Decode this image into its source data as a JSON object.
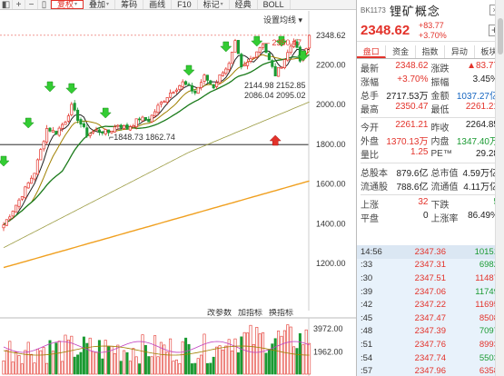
{
  "toolbar": {
    "icons": [
      "◧",
      "+",
      "−",
      "▯"
    ],
    "buttons": [
      {
        "label": "复权",
        "active": true,
        "caret": "▾"
      },
      {
        "label": "叠加",
        "active": false,
        "caret": "▾"
      },
      {
        "label": "筹码",
        "active": false
      },
      {
        "label": "画线",
        "active": false
      },
      {
        "label": "F10",
        "active": false
      },
      {
        "label": "标记",
        "active": false,
        "caret": "▾"
      },
      {
        "label": "经典",
        "active": false
      },
      {
        "label": "BOLL",
        "active": false
      }
    ],
    "settings": "设置均线 ▾"
  },
  "chart": {
    "price_axis": [
      "2348.62",
      "2200.00",
      "2000.00",
      "1800.00",
      "1600.00",
      "1400.00",
      "1200.00"
    ],
    "annotations": {
      "high": "2350.47",
      "low": "1848.73",
      "low_pair": "1848.73 1862.74",
      "mid1": "2144.98 2152.85",
      "mid2": "2086.04 2095.02"
    },
    "volume_tabs": [
      "改参数",
      "加指标",
      "换指标"
    ],
    "volume_axis": [
      "3972.00",
      "1962.00"
    ]
  },
  "chart_data": {
    "type": "candlestick",
    "x": [],
    "ylim": [
      1000,
      2380
    ],
    "current": 2348.62,
    "high": 2350.47,
    "low": 1848.73,
    "volume_ylim": [
      0,
      4600
    ]
  },
  "panel": {
    "code": "BK1173",
    "name": "锂矿概念",
    "price": "2348.62",
    "change": "+83.77",
    "change_pct": "+3.70%",
    "tabs": [
      "盘口",
      "资金",
      "指数",
      "异动",
      "板块"
    ],
    "quote": [
      [
        {
          "l": "最新",
          "v": "2348.62",
          "c": "r"
        },
        {
          "l": "涨跌",
          "v": "▲83.77",
          "c": "r"
        }
      ],
      [
        {
          "l": "涨幅",
          "v": "+3.70%",
          "c": "r"
        },
        {
          "l": "振幅",
          "v": "3.45%",
          "c": "k"
        }
      ],
      [
        {
          "l": "总手",
          "v": "2717.53万",
          "c": "k"
        },
        {
          "l": "金额",
          "v": "1037.27亿",
          "c": "b"
        }
      ],
      [
        {
          "l": "最高",
          "v": "2350.47",
          "c": "r"
        },
        {
          "l": "最低",
          "v": "2261.21",
          "c": "r"
        }
      ],
      [
        {
          "l": "今开",
          "v": "2261.21",
          "c": "r"
        },
        {
          "l": "昨收",
          "v": "2264.85",
          "c": "k"
        }
      ],
      [
        {
          "l": "外盘",
          "v": "1370.13万",
          "c": "r"
        },
        {
          "l": "内盘",
          "v": "1347.40万",
          "c": "g"
        }
      ],
      [
        {
          "l": "量比",
          "v": "1.25",
          "c": "r"
        },
        {
          "l": "PE™",
          "v": "29.28",
          "c": "k"
        }
      ],
      [
        {
          "l": "总股本",
          "v": "879.6亿",
          "c": "k"
        },
        {
          "l": "总市值",
          "v": "4.59万亿",
          "c": "k"
        }
      ],
      [
        {
          "l": "流通股",
          "v": "788.6亿",
          "c": "k"
        },
        {
          "l": "流通值",
          "v": "4.11万亿",
          "c": "k"
        }
      ],
      [
        {
          "l": "上涨",
          "v": "32",
          "c": "r"
        },
        {
          "l": "下跌",
          "v": "5",
          "c": "g"
        }
      ],
      [
        {
          "l": "平盘",
          "v": "0",
          "c": "k"
        },
        {
          "l": "上涨率",
          "v": "86.49%",
          "c": "k"
        }
      ]
    ],
    "ticks": [
      {
        "t": "14:56",
        "p": "2347.36",
        "v": "10151",
        "vc": "g"
      },
      {
        "t": ":33",
        "p": "2347.31",
        "v": "6982",
        "vc": "g"
      },
      {
        "t": ":30",
        "p": "2347.51",
        "v": "11487",
        "vc": "r"
      },
      {
        "t": ":39",
        "p": "2347.06",
        "v": "11749",
        "vc": "g"
      },
      {
        "t": ":42",
        "p": "2347.22",
        "v": "11695",
        "vc": "r"
      },
      {
        "t": ":45",
        "p": "2347.47",
        "v": "8508",
        "vc": "r"
      },
      {
        "t": ":48",
        "p": "2347.39",
        "v": "7097",
        "vc": "g"
      },
      {
        "t": ":51",
        "p": "2347.76",
        "v": "8993",
        "vc": "r"
      },
      {
        "t": ":54",
        "p": "2347.74",
        "v": "5503",
        "vc": "g"
      },
      {
        "t": ":57",
        "p": "2347.96",
        "v": "6358",
        "vc": "r"
      }
    ]
  },
  "colors": {
    "up": "#e3322a",
    "down": "#1a9a32",
    "ma5": "#222222",
    "ma10": "#a08000",
    "ma20": "#1a7a1a",
    "ma60": "#f0a020",
    "blue": "#1565c0"
  }
}
